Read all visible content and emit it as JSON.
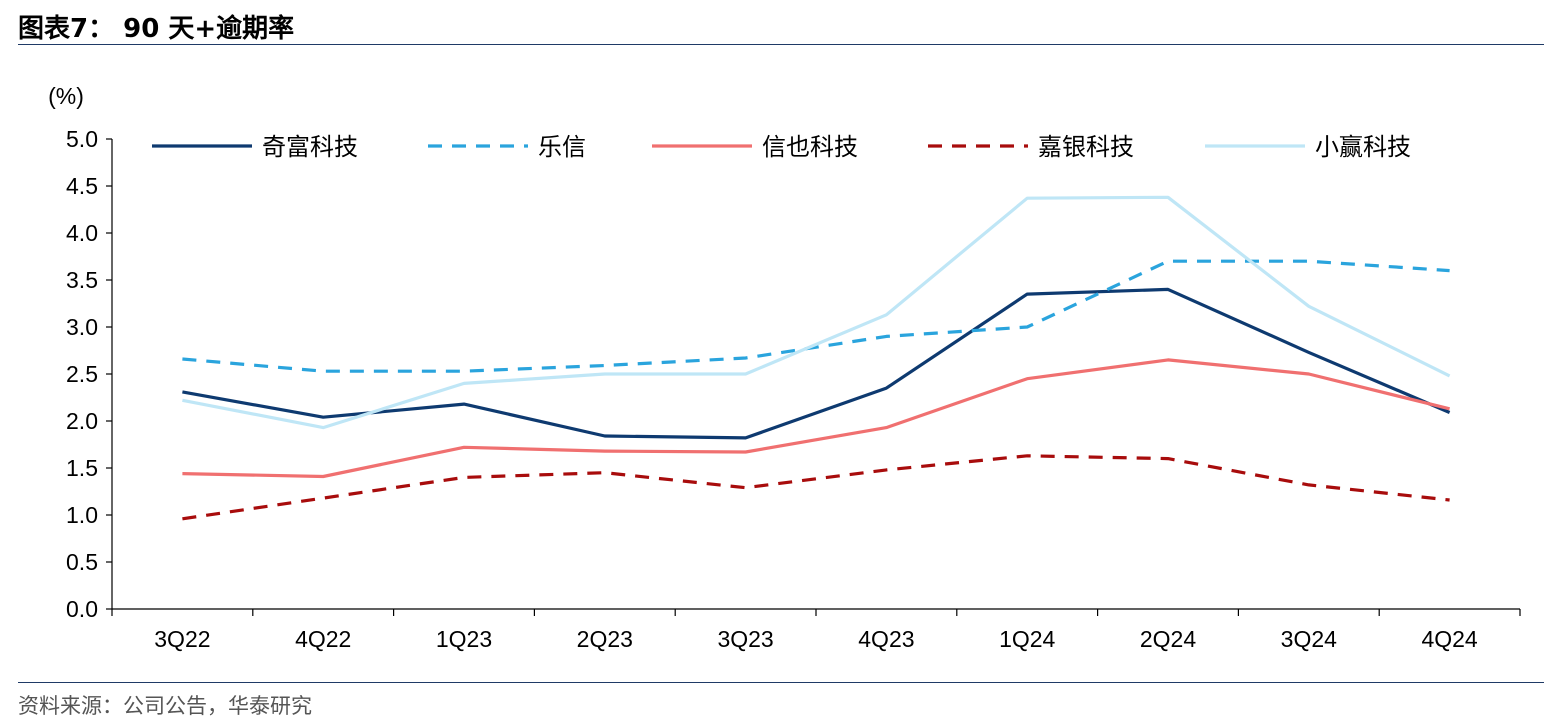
{
  "figure": {
    "title": "图表7： 90 天+逾期率",
    "source": "资料来源：公司公告，华泰研究"
  },
  "chart_data": {
    "type": "line",
    "unit_label": "(%)",
    "categories": [
      "3Q22",
      "4Q22",
      "1Q23",
      "2Q23",
      "3Q23",
      "4Q23",
      "1Q24",
      "2Q24",
      "3Q24",
      "4Q24"
    ],
    "ylim": [
      0,
      5
    ],
    "yticks": [
      "0.0",
      "0.5",
      "1.0",
      "1.5",
      "2.0",
      "2.5",
      "3.0",
      "3.5",
      "4.0",
      "4.5",
      "5.0"
    ],
    "grid": false,
    "legend_position": "top",
    "series": [
      {
        "name": "奇富科技",
        "color": "#0e3a70",
        "dash": "solid",
        "values": [
          2.31,
          2.04,
          2.18,
          1.84,
          1.82,
          2.35,
          3.35,
          3.4,
          2.73,
          2.09
        ]
      },
      {
        "name": "乐信",
        "color": "#2aa4dd",
        "dash": "dashed",
        "values": [
          2.66,
          2.53,
          2.53,
          2.59,
          2.67,
          2.9,
          3.0,
          3.7,
          3.7,
          3.6
        ]
      },
      {
        "name": "信也科技",
        "color": "#f07070",
        "dash": "solid",
        "values": [
          1.44,
          1.41,
          1.72,
          1.68,
          1.67,
          1.93,
          2.45,
          2.65,
          2.5,
          2.13
        ]
      },
      {
        "name": "嘉银科技",
        "color": "#a80c0c",
        "dash": "dashed",
        "values": [
          0.96,
          1.18,
          1.4,
          1.45,
          1.29,
          1.48,
          1.63,
          1.6,
          1.32,
          1.16
        ]
      },
      {
        "name": "小赢科技",
        "color": "#bfe6f6",
        "dash": "solid",
        "values": [
          2.22,
          1.93,
          2.4,
          2.5,
          2.5,
          3.13,
          4.37,
          4.38,
          3.22,
          2.48
        ]
      }
    ]
  }
}
